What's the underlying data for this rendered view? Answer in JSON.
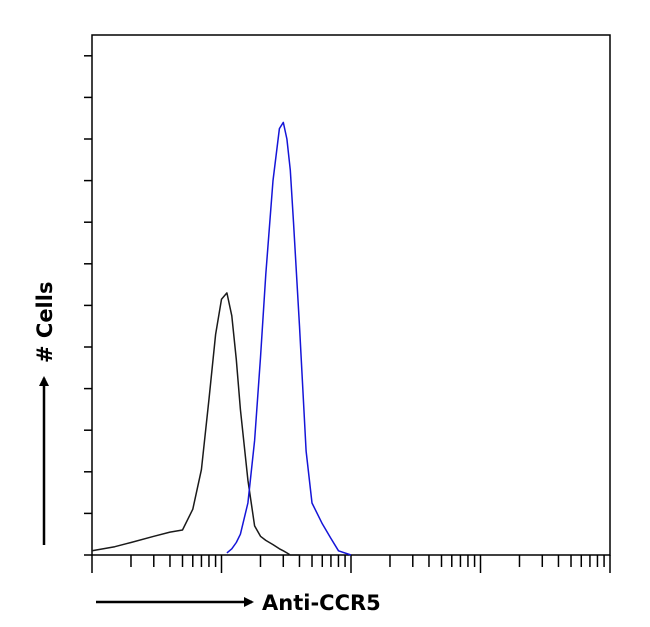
{
  "chart_data": {
    "type": "line",
    "x_label": "Anti-CCR5",
    "y_label": "# Cells",
    "xscale": "log",
    "xlim": [
      1,
      10000
    ],
    "ylim": [
      0,
      250
    ],
    "xticks": [
      1,
      2,
      3,
      4,
      5,
      6,
      7,
      8,
      9,
      10,
      20,
      30,
      40,
      50,
      60,
      70,
      80,
      90,
      100,
      200,
      300,
      400,
      500,
      600,
      700,
      800,
      900,
      1000,
      2000,
      3000,
      4000,
      5000,
      6000,
      7000,
      8000,
      9000,
      10000
    ],
    "yticks": [
      0,
      20,
      40,
      60,
      80,
      100,
      120,
      140,
      160,
      180,
      200,
      220,
      240
    ],
    "x": [
      1,
      1.5,
      2,
      3,
      4,
      5,
      6,
      7,
      8,
      9,
      10,
      11,
      12,
      13,
      14,
      16,
      18,
      20,
      22,
      25,
      28,
      30,
      32,
      34,
      36,
      40,
      45,
      50,
      60,
      70,
      80,
      100
    ],
    "series": [
      {
        "name": null,
        "color": "#1a1a1a",
        "values": [
          2,
          4,
          6,
          9,
          11,
          12,
          22,
          41,
          75,
          106,
          123,
          126,
          115,
          94,
          70,
          36,
          14,
          9,
          7,
          5,
          3,
          2,
          1,
          0,
          0,
          0,
          null,
          null,
          null,
          null,
          null,
          null
        ]
      },
      {
        "name": null,
        "color": "#1515d8",
        "values": [
          null,
          null,
          null,
          null,
          null,
          null,
          null,
          null,
          null,
          null,
          null,
          1,
          3,
          6,
          10,
          25,
          55,
          95,
          135,
          180,
          205,
          208,
          200,
          185,
          160,
          110,
          50,
          25,
          15,
          8,
          2,
          0
        ]
      }
    ]
  }
}
